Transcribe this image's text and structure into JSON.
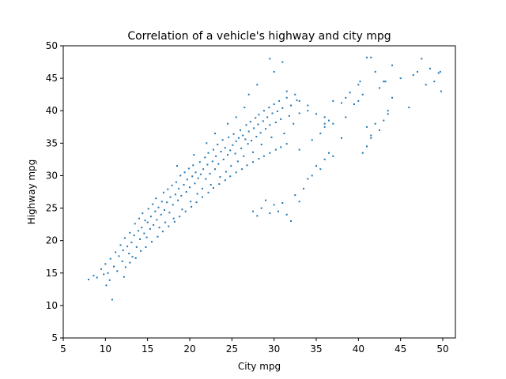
{
  "chart_data": {
    "type": "scatter",
    "title": "Correlation of a vehicle's highway and city mpg",
    "xlabel": "City mpg",
    "ylabel": "Highway mpg",
    "xlim": [
      5,
      51.5
    ],
    "ylim": [
      5,
      50
    ],
    "xticks": [
      5,
      10,
      15,
      20,
      25,
      30,
      35,
      40,
      45,
      50
    ],
    "yticks": [
      5,
      10,
      15,
      20,
      25,
      30,
      35,
      40,
      45,
      50
    ],
    "grid": false,
    "color": "#1f77b4",
    "series": [
      {
        "points": [
          [
            8.0,
            14.0
          ],
          [
            8.6,
            14.6
          ],
          [
            9.0,
            14.3
          ],
          [
            9.5,
            15.6
          ],
          [
            9.8,
            14.8
          ],
          [
            10.0,
            16.4
          ],
          [
            10.1,
            13.1
          ],
          [
            10.3,
            15.0
          ],
          [
            10.5,
            13.9
          ],
          [
            10.8,
            10.9
          ],
          [
            10.6,
            17.2
          ],
          [
            11.0,
            16.0
          ],
          [
            11.2,
            18.2
          ],
          [
            11.4,
            15.3
          ],
          [
            11.6,
            17.6
          ],
          [
            11.8,
            19.3
          ],
          [
            12.0,
            16.8
          ],
          [
            12.1,
            18.5
          ],
          [
            12.3,
            20.4
          ],
          [
            12.4,
            15.9
          ],
          [
            12.6,
            19.1
          ],
          [
            12.8,
            18.0
          ],
          [
            12.9,
            21.2
          ],
          [
            13.1,
            19.7
          ],
          [
            13.2,
            17.5
          ],
          [
            13.4,
            20.8
          ],
          [
            13.5,
            22.6
          ],
          [
            13.7,
            19.0
          ],
          [
            13.9,
            21.5
          ],
          [
            14.0,
            23.4
          ],
          [
            14.1,
            20.2
          ],
          [
            14.3,
            22.0
          ],
          [
            14.4,
            24.2
          ],
          [
            14.6,
            21.1
          ],
          [
            14.7,
            23.1
          ],
          [
            14.9,
            20.5
          ],
          [
            15.0,
            22.8
          ],
          [
            15.1,
            24.9
          ],
          [
            15.3,
            21.8
          ],
          [
            15.4,
            23.7
          ],
          [
            15.6,
            25.6
          ],
          [
            15.7,
            22.4
          ],
          [
            15.9,
            24.5
          ],
          [
            16.0,
            26.5
          ],
          [
            16.1,
            23.2
          ],
          [
            16.3,
            25.1
          ],
          [
            16.4,
            22.0
          ],
          [
            16.6,
            24.0
          ],
          [
            16.7,
            26.0
          ],
          [
            16.9,
            27.4
          ],
          [
            17.0,
            24.7
          ],
          [
            17.1,
            22.8
          ],
          [
            17.3,
            25.9
          ],
          [
            17.4,
            27.9
          ],
          [
            17.6,
            24.3
          ],
          [
            17.7,
            26.7
          ],
          [
            17.9,
            28.5
          ],
          [
            18.0,
            25.5
          ],
          [
            18.1,
            23.4
          ],
          [
            18.3,
            27.1
          ],
          [
            18.4,
            29.0
          ],
          [
            18.6,
            26.2
          ],
          [
            18.7,
            28.0
          ],
          [
            18.9,
            30.0
          ],
          [
            19.0,
            26.9
          ],
          [
            19.1,
            24.8
          ],
          [
            19.3,
            28.6
          ],
          [
            19.4,
            30.5
          ],
          [
            19.6,
            27.5
          ],
          [
            19.7,
            29.4
          ],
          [
            19.9,
            31.1
          ],
          [
            20.0,
            28.2
          ],
          [
            20.1,
            26.0
          ],
          [
            20.3,
            29.9
          ],
          [
            20.4,
            31.6
          ],
          [
            20.6,
            28.8
          ],
          [
            20.7,
            30.5
          ],
          [
            20.9,
            27.2
          ],
          [
            21.0,
            29.6
          ],
          [
            21.2,
            32.1
          ],
          [
            21.3,
            30.2
          ],
          [
            21.5,
            28.0
          ],
          [
            21.6,
            31.0
          ],
          [
            21.8,
            32.8
          ],
          [
            21.9,
            29.5
          ],
          [
            22.1,
            31.7
          ],
          [
            22.2,
            33.5
          ],
          [
            22.4,
            30.3
          ],
          [
            22.5,
            28.6
          ],
          [
            22.7,
            32.2
          ],
          [
            22.8,
            34.0
          ],
          [
            23.0,
            31.0
          ],
          [
            23.1,
            33.0
          ],
          [
            23.3,
            34.8
          ],
          [
            23.4,
            31.8
          ],
          [
            23.6,
            29.8
          ],
          [
            23.7,
            33.7
          ],
          [
            23.9,
            35.5
          ],
          [
            24.0,
            32.5
          ],
          [
            24.2,
            34.3
          ],
          [
            24.3,
            30.6
          ],
          [
            24.5,
            33.2
          ],
          [
            24.6,
            35.9
          ],
          [
            24.8,
            33.9
          ],
          [
            24.9,
            31.5
          ],
          [
            25.1,
            34.7
          ],
          [
            25.2,
            36.4
          ],
          [
            25.4,
            33.4
          ],
          [
            25.5,
            35.3
          ],
          [
            25.7,
            32.2
          ],
          [
            25.8,
            35.8
          ],
          [
            26.0,
            37.0
          ],
          [
            26.1,
            34.2
          ],
          [
            26.3,
            36.2
          ],
          [
            26.4,
            33.0
          ],
          [
            26.6,
            35.6
          ],
          [
            26.7,
            37.8
          ],
          [
            26.9,
            34.9
          ],
          [
            27.0,
            36.8
          ],
          [
            27.2,
            38.3
          ],
          [
            27.3,
            35.4
          ],
          [
            27.5,
            33.6
          ],
          [
            27.6,
            37.3
          ],
          [
            27.8,
            38.9
          ],
          [
            27.9,
            36.0
          ],
          [
            28.1,
            37.9
          ],
          [
            28.2,
            39.4
          ],
          [
            28.4,
            36.6
          ],
          [
            28.5,
            34.8
          ],
          [
            28.7,
            38.4
          ],
          [
            28.8,
            40.0
          ],
          [
            29.0,
            37.2
          ],
          [
            29.2,
            39.0
          ],
          [
            29.4,
            40.5
          ],
          [
            29.5,
            37.8
          ],
          [
            29.7,
            35.9
          ],
          [
            29.8,
            39.6
          ],
          [
            30.0,
            41.0
          ],
          [
            30.2,
            38.2
          ],
          [
            30.4,
            39.9
          ],
          [
            30.6,
            41.5
          ],
          [
            30.8,
            38.7
          ],
          [
            31.0,
            40.4
          ],
          [
            31.2,
            36.5
          ],
          [
            31.5,
            42.0
          ],
          [
            31.8,
            39.2
          ],
          [
            32.0,
            40.8
          ],
          [
            32.3,
            38.0
          ],
          [
            32.7,
            41.6
          ],
          [
            33.0,
            39.6
          ],
          [
            12.2,
            14.4
          ],
          [
            12.9,
            16.6
          ],
          [
            13.6,
            17.3
          ],
          [
            14.2,
            18.4
          ],
          [
            14.8,
            19.0
          ],
          [
            15.5,
            19.8
          ],
          [
            16.2,
            20.6
          ],
          [
            16.8,
            21.4
          ],
          [
            17.5,
            22.2
          ],
          [
            18.2,
            22.9
          ],
          [
            18.8,
            23.7
          ],
          [
            19.5,
            24.5
          ],
          [
            20.2,
            25.2
          ],
          [
            20.8,
            25.9
          ],
          [
            21.5,
            26.7
          ],
          [
            22.2,
            27.4
          ],
          [
            22.8,
            28.1
          ],
          [
            23.5,
            28.7
          ],
          [
            24.2,
            29.3
          ],
          [
            24.8,
            29.9
          ],
          [
            25.5,
            30.5
          ],
          [
            26.2,
            31.0
          ],
          [
            26.8,
            31.6
          ],
          [
            27.5,
            32.1
          ],
          [
            28.2,
            32.6
          ],
          [
            28.8,
            33.0
          ],
          [
            29.5,
            33.5
          ],
          [
            30.2,
            34.0
          ],
          [
            30.8,
            34.4
          ],
          [
            31.5,
            34.9
          ],
          [
            18.5,
            31.5
          ],
          [
            20.5,
            33.2
          ],
          [
            22.0,
            35.0
          ],
          [
            23.0,
            36.5
          ],
          [
            24.5,
            38.0
          ],
          [
            25.5,
            39.0
          ],
          [
            26.5,
            40.5
          ],
          [
            27.0,
            42.5
          ],
          [
            28.0,
            44.0
          ],
          [
            29.5,
            48.0
          ],
          [
            30.0,
            46.0
          ],
          [
            31.0,
            47.5
          ],
          [
            31.5,
            43.0
          ],
          [
            32.5,
            42.5
          ],
          [
            33.0,
            41.5
          ],
          [
            34.0,
            40.8
          ],
          [
            27.5,
            24.5
          ],
          [
            28.0,
            23.8
          ],
          [
            28.5,
            25.0
          ],
          [
            29.0,
            26.2
          ],
          [
            29.5,
            24.2
          ],
          [
            30.0,
            25.5
          ],
          [
            30.5,
            24.5
          ],
          [
            31.0,
            25.8
          ],
          [
            31.5,
            24.0
          ],
          [
            32.0,
            23.0
          ],
          [
            32.5,
            27.0
          ],
          [
            33.0,
            26.0
          ],
          [
            33.5,
            28.0
          ],
          [
            34.0,
            29.5
          ],
          [
            34.5,
            30.0
          ],
          [
            35.0,
            31.5
          ],
          [
            35.5,
            31.0
          ],
          [
            36.0,
            32.5
          ],
          [
            36.5,
            33.5
          ],
          [
            37.0,
            33.0
          ],
          [
            33.0,
            34.0
          ],
          [
            34.5,
            35.5
          ],
          [
            35.5,
            36.5
          ],
          [
            36.0,
            37.5
          ],
          [
            36.5,
            38.5
          ],
          [
            35.0,
            39.5
          ],
          [
            34.0,
            40.0
          ],
          [
            36.0,
            38.0
          ],
          [
            37.0,
            41.5
          ],
          [
            38.0,
            41.2
          ],
          [
            38.5,
            42.0
          ],
          [
            39.0,
            42.8
          ],
          [
            39.5,
            41.0
          ],
          [
            40.0,
            44.0
          ],
          [
            40.5,
            42.5
          ],
          [
            41.0,
            48.2
          ],
          [
            41.5,
            48.2
          ],
          [
            42.0,
            46.0
          ],
          [
            42.5,
            43.5
          ],
          [
            43.0,
            44.5
          ],
          [
            43.5,
            40.0
          ],
          [
            44.0,
            47.0
          ],
          [
            45.0,
            45.0
          ],
          [
            46.0,
            40.5
          ],
          [
            46.5,
            45.5
          ],
          [
            47.0,
            46.0
          ],
          [
            47.5,
            48.0
          ],
          [
            48.0,
            44.0
          ],
          [
            48.5,
            46.5
          ],
          [
            49.0,
            44.5
          ],
          [
            49.5,
            45.8
          ],
          [
            49.8,
            43.0
          ],
          [
            49.7,
            46.0
          ],
          [
            38.5,
            39.0
          ],
          [
            40.0,
            41.5
          ],
          [
            41.0,
            37.5
          ],
          [
            41.5,
            35.8
          ],
          [
            42.0,
            38.0
          ],
          [
            42.5,
            37.0
          ],
          [
            43.0,
            38.5
          ],
          [
            43.5,
            39.5
          ],
          [
            44.0,
            42.0
          ],
          [
            41.0,
            34.5
          ],
          [
            40.5,
            33.5
          ],
          [
            41.5,
            36.2
          ],
          [
            36.0,
            39.0
          ],
          [
            37.0,
            38.0
          ],
          [
            38.0,
            35.8
          ],
          [
            43.2,
            44.5
          ],
          [
            40.2,
            44.5
          ]
        ]
      }
    ]
  }
}
